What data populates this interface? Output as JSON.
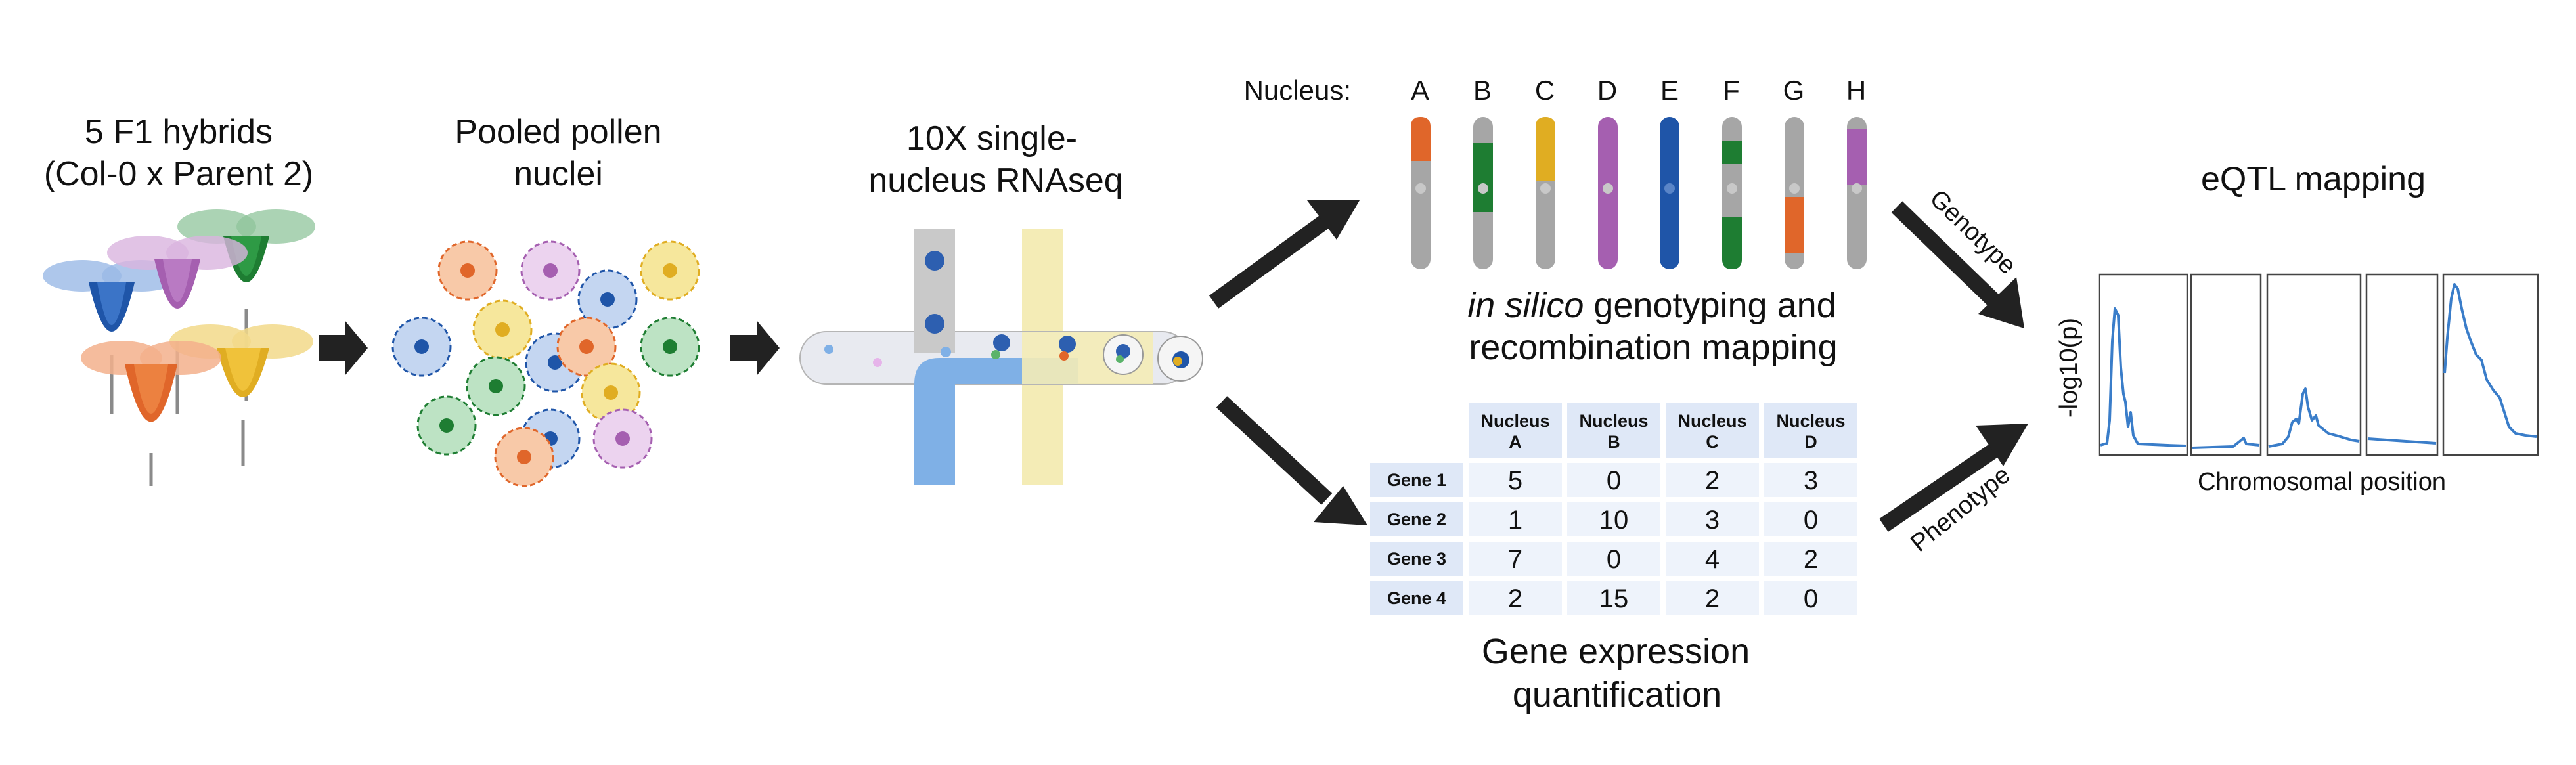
{
  "steps": {
    "hybrids": {
      "line1": "5 F1 hybrids",
      "line2": "(Col-0 x Parent 2)"
    },
    "pollen": {
      "line1": "Pooled pollen",
      "line2": "nuclei"
    },
    "sequencing": {
      "line1": "10X single-",
      "line2": "nucleus RNAseq"
    },
    "genotyping": {
      "italic": "in silico",
      "rest": " genotyping and",
      "line2": "recombination mapping"
    },
    "expression": {
      "line1": "Gene expression",
      "line2": "quantification"
    },
    "eqtl": {
      "title": "eQTL mapping",
      "ylabel": "-log10(p)",
      "xlabel": "Chromosomal position"
    }
  },
  "arrows": {
    "genotype": "Genotype",
    "phenotype": "Phenotype"
  },
  "nuclei": {
    "prefix": "Nucleus:",
    "ids": [
      "A",
      "B",
      "C",
      "D",
      "E",
      "F",
      "G",
      "H"
    ]
  },
  "expression_table": {
    "columns": [
      {
        "l1": "Nucleus",
        "l2": "A"
      },
      {
        "l1": "Nucleus",
        "l2": "B"
      },
      {
        "l1": "Nucleus",
        "l2": "C"
      },
      {
        "l1": "Nucleus",
        "l2": "D"
      }
    ],
    "rows": [
      {
        "gene": "Gene 1",
        "values": [
          5,
          0,
          2,
          3
        ]
      },
      {
        "gene": "Gene 2",
        "values": [
          1,
          10,
          3,
          0
        ]
      },
      {
        "gene": "Gene 3",
        "values": [
          7,
          0,
          4,
          2
        ]
      },
      {
        "gene": "Gene 4",
        "values": [
          2,
          15,
          2,
          0
        ]
      }
    ]
  },
  "colors": {
    "orange": "#e0662a",
    "green": "#1e7d32",
    "yellow": "#e0ad22",
    "purple": "#a55fb0",
    "blue": "#1f55a8",
    "gray": "#a6a6a6",
    "trace": "#3a7dc9",
    "arrow": "#222222",
    "table_header": "#dfe8f7",
    "table_cell": "#eef3fb"
  }
}
